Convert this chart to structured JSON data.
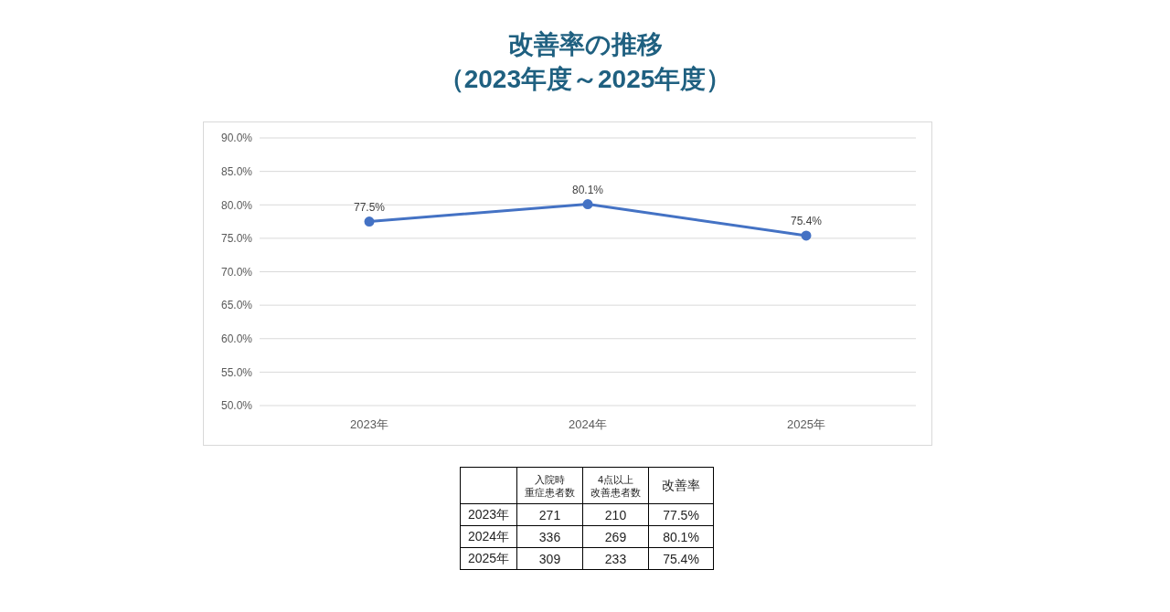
{
  "chart_data": [
    {
      "type": "line",
      "title": "改善率の推移（2023年度～2025年度）",
      "categories": [
        "2023年",
        "2024年",
        "2025年"
      ],
      "series": [
        {
          "name": "改善率",
          "color": "#4472c4",
          "values": [
            77.5,
            80.1,
            75.4
          ],
          "value_labels": [
            "77.5%",
            "80.1%",
            "75.4%"
          ]
        }
      ],
      "ylim": [
        50,
        90
      ],
      "yticks": [
        {
          "value": 50,
          "label": "50.0%"
        },
        {
          "value": 55,
          "label": "55.0%"
        },
        {
          "value": 60,
          "label": "60.0%"
        },
        {
          "value": 65,
          "label": "65.0%"
        },
        {
          "value": 70,
          "label": "70.0%"
        },
        {
          "value": 75,
          "label": "75.0%"
        },
        {
          "value": 80,
          "label": "80.0%"
        },
        {
          "value": 85,
          "label": "85.0%"
        },
        {
          "value": 90,
          "label": "90.0%"
        }
      ],
      "grid": "y",
      "marker": "circle",
      "line_style": "solid"
    },
    {
      "type": "other",
      "categories": [
        "2023年",
        "2024年",
        "2025年"
      ],
      "data_labels": true,
      "series": [
        {
          "name": "入院時重症患者数",
          "values": [
            271,
            336,
            309
          ]
        },
        {
          "name": "4点以上改善患者数",
          "values": [
            210,
            269,
            233
          ]
        }
      ]
    }
  ]
}
